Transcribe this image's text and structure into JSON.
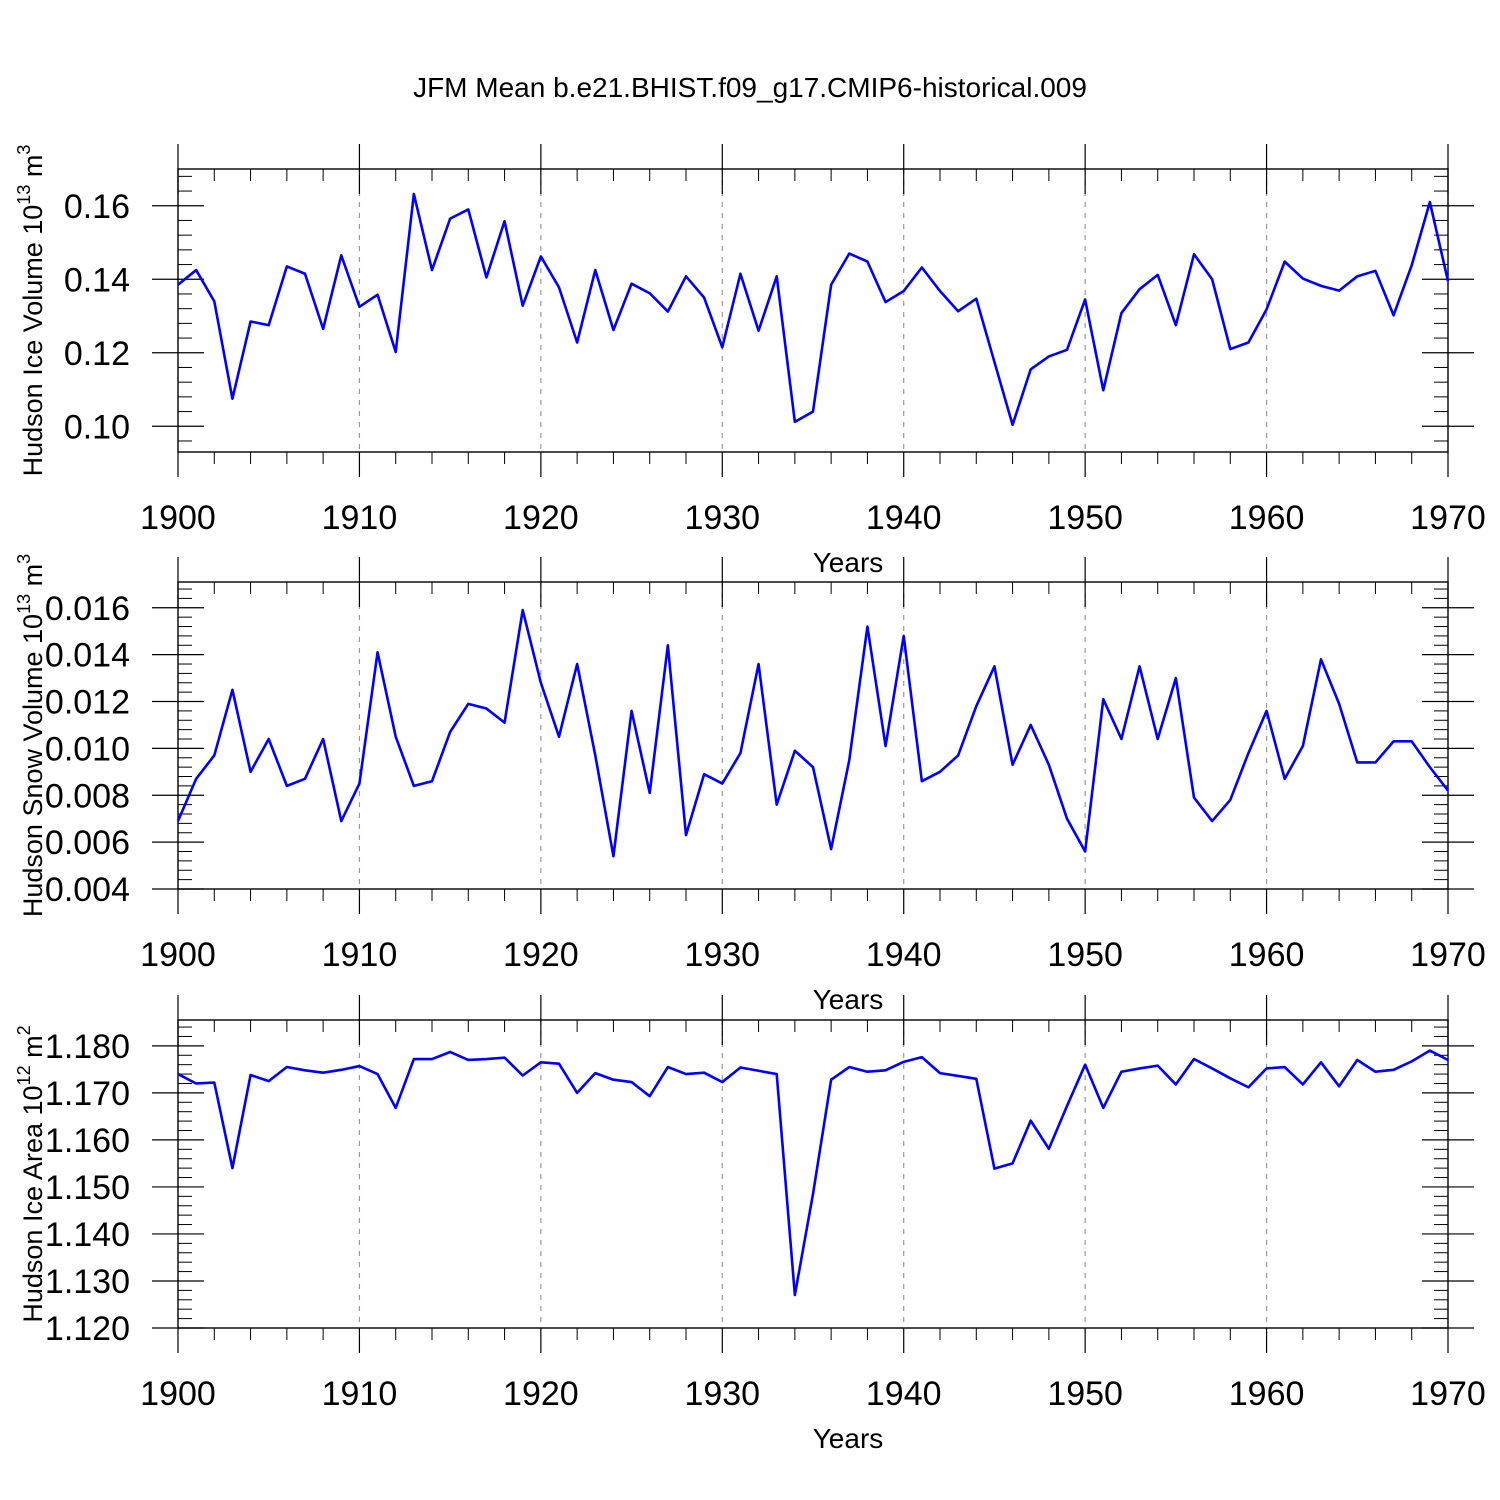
{
  "title": "JFM Mean b.e21.BHIST.f09_g17.CMIP6-historical.009",
  "colors": {
    "line": "#0000ff",
    "axis": "#000000",
    "grid": "#999999"
  },
  "chart_data": [
    {
      "type": "line",
      "name": "ice-volume",
      "ylabel_main": "Hudson Ice Volume 10",
      "ylabel_exp": "13",
      "ylabel_unit": "m",
      "ylabel_unit_exp": "3",
      "xlabel": "Years",
      "xlim": [
        1900,
        1970
      ],
      "ylim": [
        0.093,
        0.17
      ],
      "xticks": [
        1900,
        1910,
        1920,
        1930,
        1940,
        1950,
        1960,
        1970
      ],
      "yticks": [
        0.1,
        0.12,
        0.14,
        0.16
      ],
      "ytick_labels": [
        "0.10",
        "0.12",
        "0.14",
        "0.16"
      ],
      "grid": "vertical dashed at major x ticks",
      "x_start": 1900,
      "values": [
        0.1385,
        0.1425,
        0.134,
        0.1075,
        0.1285,
        0.1275,
        0.1435,
        0.1415,
        0.1265,
        0.1465,
        0.1325,
        0.1358,
        0.1202,
        0.1632,
        0.1425,
        0.1565,
        0.159,
        0.1405,
        0.1558,
        0.1328,
        0.1462,
        0.1378,
        0.1228,
        0.1425,
        0.1262,
        0.1388,
        0.1362,
        0.1312,
        0.1408,
        0.135,
        0.1215,
        0.1415,
        0.126,
        0.1408,
        0.1012,
        0.104,
        0.1385,
        0.147,
        0.1448,
        0.1338,
        0.1368,
        0.1432,
        0.1368,
        0.1313,
        0.1347,
        0.1175,
        0.1004,
        0.1155,
        0.119,
        0.1208,
        0.1345,
        0.1098,
        0.1308,
        0.1373,
        0.1412,
        0.1275,
        0.1468,
        0.14,
        0.121,
        0.1228,
        0.1318,
        0.1448,
        0.1402,
        0.1382,
        0.1369,
        0.1408,
        0.1423,
        0.1302,
        0.1438,
        0.161,
        0.1395
      ]
    },
    {
      "type": "line",
      "name": "snow-volume",
      "ylabel_main": "Hudson Snow Volume 10",
      "ylabel_exp": "13",
      "ylabel_unit": "m",
      "ylabel_unit_exp": "3",
      "xlabel": "Years",
      "xlim": [
        1900,
        1970
      ],
      "ylim": [
        0.004,
        0.0171
      ],
      "xticks": [
        1900,
        1910,
        1920,
        1930,
        1940,
        1950,
        1960,
        1970
      ],
      "yticks": [
        0.004,
        0.006,
        0.008,
        0.01,
        0.012,
        0.014,
        0.016
      ],
      "ytick_labels": [
        "0.004",
        "0.006",
        "0.008",
        "0.010",
        "0.012",
        "0.014",
        "0.016"
      ],
      "grid": "vertical dashed at major x ticks",
      "x_start": 1900,
      "values": [
        0.0069,
        0.0087,
        0.0097,
        0.0125,
        0.009,
        0.0104,
        0.0084,
        0.0087,
        0.0104,
        0.0069,
        0.0085,
        0.0141,
        0.0105,
        0.0084,
        0.0086,
        0.0107,
        0.0119,
        0.0117,
        0.0111,
        0.0159,
        0.0128,
        0.0105,
        0.0136,
        0.0097,
        0.0054,
        0.0116,
        0.0081,
        0.0144,
        0.0063,
        0.0089,
        0.0085,
        0.0098,
        0.0136,
        0.0076,
        0.0099,
        0.0092,
        0.0057,
        0.0095,
        0.0152,
        0.0101,
        0.0148,
        0.0086,
        0.009,
        0.0097,
        0.0118,
        0.0135,
        0.0093,
        0.011,
        0.0093,
        0.007,
        0.0056,
        0.0121,
        0.0104,
        0.0135,
        0.0104,
        0.013,
        0.0079,
        0.0069,
        0.0078,
        0.0098,
        0.0116,
        0.0087,
        0.0101,
        0.0138,
        0.0119,
        0.0094,
        0.0094,
        0.0103,
        0.0103,
        0.0092,
        0.0082
      ]
    },
    {
      "type": "line",
      "name": "ice-area",
      "ylabel_main": "Hudson Ice Area 10",
      "ylabel_exp": "12",
      "ylabel_unit": "m",
      "ylabel_unit_exp": "2",
      "xlabel": "Years",
      "xlim": [
        1900,
        1970
      ],
      "ylim": [
        1.12,
        1.1855
      ],
      "xticks": [
        1900,
        1910,
        1920,
        1930,
        1940,
        1950,
        1960,
        1970
      ],
      "yticks": [
        1.12,
        1.13,
        1.14,
        1.15,
        1.16,
        1.17,
        1.18
      ],
      "ytick_labels": [
        "1.120",
        "1.130",
        "1.140",
        "1.150",
        "1.160",
        "1.170",
        "1.180"
      ],
      "grid": "vertical dashed at major x ticks",
      "x_start": 1900,
      "values": [
        1.174,
        1.172,
        1.1722,
        1.154,
        1.1738,
        1.1725,
        1.1755,
        1.1748,
        1.1743,
        1.1749,
        1.1757,
        1.174,
        1.1668,
        1.1772,
        1.1772,
        1.1787,
        1.177,
        1.1772,
        1.1775,
        1.1737,
        1.1765,
        1.1762,
        1.17,
        1.1742,
        1.1728,
        1.1723,
        1.1693,
        1.1755,
        1.174,
        1.1743,
        1.1723,
        1.1754,
        1.1747,
        1.174,
        1.127,
        1.1485,
        1.1728,
        1.1755,
        1.1745,
        1.1748,
        1.1766,
        1.1776,
        1.1742,
        1.1736,
        1.173,
        1.1539,
        1.155,
        1.1641,
        1.1581,
        1.1672,
        1.176,
        1.1668,
        1.1745,
        1.1752,
        1.1758,
        1.1718,
        1.1772,
        1.1752,
        1.1731,
        1.1712,
        1.1752,
        1.1755,
        1.1718,
        1.1765,
        1.1714,
        1.177,
        1.1745,
        1.1749,
        1.1767,
        1.179,
        1.177
      ]
    }
  ]
}
